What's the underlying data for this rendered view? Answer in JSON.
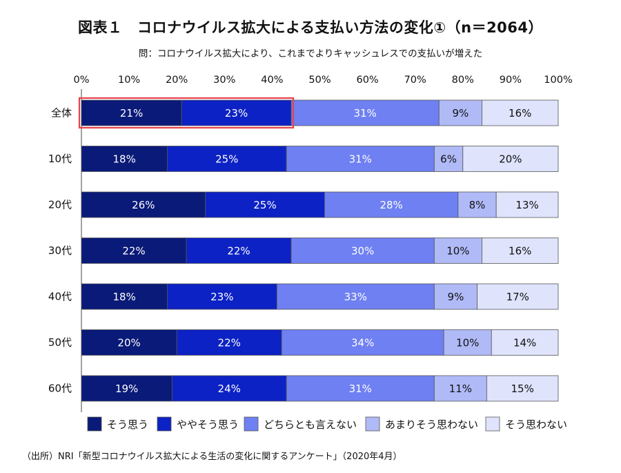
{
  "title": "図表１　コロナウイルス拡大による支払い方法の変化①（n＝2064）",
  "subtitle": "問：コロナウイルス拡大により、これまでよりキャッシュレスでの支払いが増えた",
  "source": "（出所）NRI「新型コロナウイルス拡大による生活の変化に関するアンケート」（2020年4月）",
  "colors": {
    "series": [
      "#0a1a78",
      "#0d22c4",
      "#6f80f2",
      "#b0baf7",
      "#dfe3fc"
    ],
    "label_text": [
      "#ffffff",
      "#ffffff",
      "#ffffff",
      "#111111",
      "#111111"
    ],
    "highlight": "#e8414a",
    "grid": "#444444"
  },
  "chart_data": {
    "type": "bar",
    "orientation": "horizontal",
    "stacked": true,
    "categories": [
      "全体",
      "10代",
      "20代",
      "30代",
      "40代",
      "50代",
      "60代"
    ],
    "series": [
      {
        "name": "そう思う",
        "values": [
          21,
          18,
          26,
          22,
          18,
          20,
          19
        ]
      },
      {
        "name": "ややそう思う",
        "values": [
          23,
          25,
          25,
          22,
          23,
          22,
          24
        ]
      },
      {
        "name": "どちらとも言えない",
        "values": [
          31,
          31,
          28,
          30,
          33,
          34,
          31
        ]
      },
      {
        "name": "あまりそう思わない",
        "values": [
          9,
          6,
          8,
          10,
          9,
          10,
          11
        ]
      },
      {
        "name": "そう思わない",
        "values": [
          16,
          20,
          13,
          16,
          17,
          14,
          15
        ]
      }
    ],
    "data_labels": [
      [
        "21%",
        "23%",
        "31%",
        "9%",
        "16%"
      ],
      [
        "18%",
        "25%",
        "31%",
        "6%",
        "20%"
      ],
      [
        "26%",
        "25%",
        "28%",
        "8%",
        "13%"
      ],
      [
        "22%",
        "22%",
        "30%",
        "10%",
        "16%"
      ],
      [
        "18%",
        "23%",
        "33%",
        "9%",
        "17%"
      ],
      [
        "20%",
        "22%",
        "34%",
        "10%",
        "14%"
      ],
      [
        "19%",
        "24%",
        "31%",
        "11%",
        "15%"
      ]
    ],
    "x_ticks": [
      "0%",
      "10%",
      "20%",
      "30%",
      "40%",
      "50%",
      "60%",
      "70%",
      "80%",
      "90%",
      "100%"
    ],
    "xlim": [
      0,
      100
    ],
    "xaxis_position": "top",
    "grid": false,
    "legend_position": "bottom",
    "highlight": {
      "category": "全体",
      "series": [
        "そう思う",
        "ややそう思う"
      ]
    }
  }
}
